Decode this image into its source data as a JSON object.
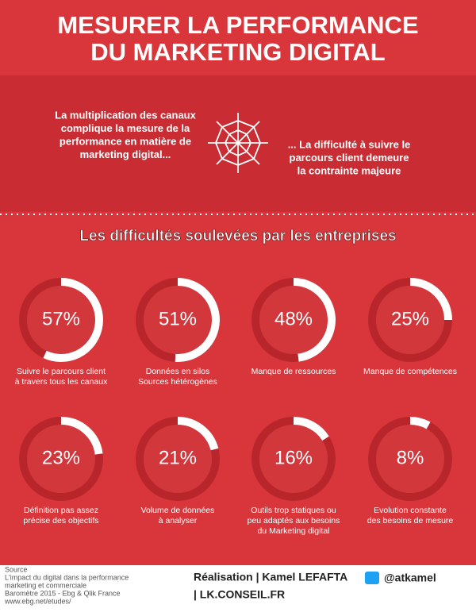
{
  "header": {
    "title": [
      "MESURER LA PERFORMANCE",
      "DU MARKETING DIGITAL"
    ]
  },
  "intro": {
    "left": [
      "La multiplication des canaux",
      "complique la mesure de la",
      "performance en matière de",
      "marketing digital..."
    ],
    "right": [
      "... La difficulté à suivre le",
      "parcours client demeure",
      "la contrainte majeure"
    ]
  },
  "stats": {
    "title": "Les difficultés soulevées par les entreprises",
    "items": [
      {
        "value": 57,
        "value_label": "57%",
        "label": [
          "Suivre le parcours client",
          "à travers tous les canaux"
        ]
      },
      {
        "value": 51,
        "value_label": "51%",
        "label": [
          "Données en silos",
          "Sources hétérogènes"
        ]
      },
      {
        "value": 48,
        "value_label": "48%",
        "label": [
          "Manque de ressources"
        ]
      },
      {
        "value": 25,
        "value_label": "25%",
        "label": [
          "Manque de compétences"
        ]
      },
      {
        "value": 23,
        "value_label": "23%",
        "label": [
          "Définition pas assez",
          "précise des objectifs"
        ]
      },
      {
        "value": 21,
        "value_label": "21%",
        "label": [
          "Volume de données",
          "à analyser"
        ]
      },
      {
        "value": 16,
        "value_label": "16%",
        "label": [
          "Outils trop statiques ou",
          "peu adaptés aux besoins",
          "du Marketing digital"
        ]
      },
      {
        "value": 8,
        "value_label": "8%",
        "label": [
          "Evolution constante",
          "des besoins de mesure"
        ]
      }
    ]
  },
  "footer": {
    "source": [
      "Source",
      "L'impact du digital dans la performance",
      "marketing et commerciale",
      "Baromètre 2015 - Ebg & Qlik France",
      "www.ebg.net/etudes/"
    ],
    "credit": [
      "Réalisation | Kamel LEFAFTA",
      "| LK.CONSEIL.FR"
    ],
    "twitter": "@atkamel"
  }
}
